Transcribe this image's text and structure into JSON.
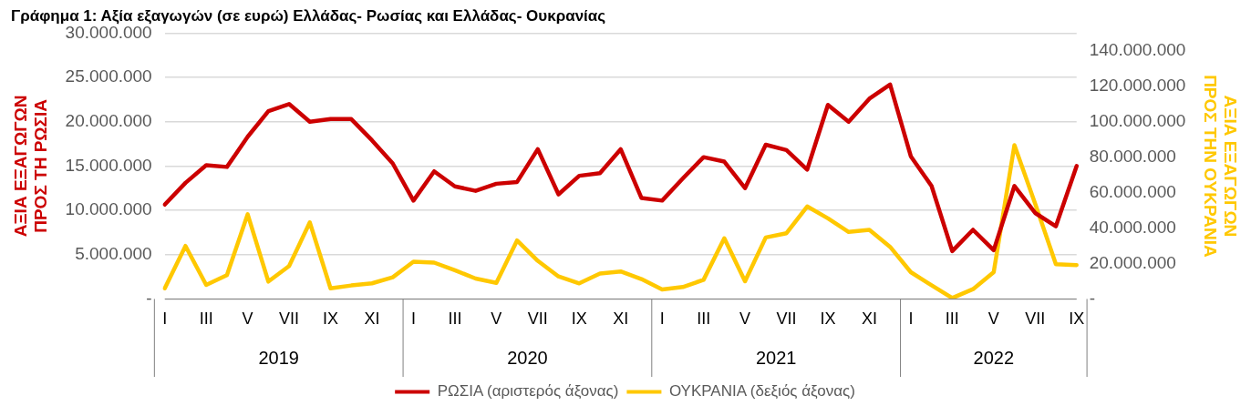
{
  "chart_data": {
    "type": "line",
    "title": "Γράφημα 1: Αξία εξαγωγών (σε ευρώ) Ελλάδας- Ρωσίας και Ελλάδας- Ουκρανίας",
    "ylabel": "ΑΞΙΑ ΕΞΑΓΩΓΩΝ ΠΡΟΣ ΤΗ ΡΩΣΙΑ",
    "y2label": "ΑΞΙΑ ΕΞΑΓΩΓΩΝ ΠΡΟΣ ΤΗΝ ΟΥΚΡΑΝΙΑ",
    "categories": [
      "I",
      null,
      "III",
      null,
      "V",
      null,
      "VII",
      null,
      "IX",
      null,
      "XI",
      null,
      "I",
      null,
      "III",
      null,
      "V",
      null,
      "VII",
      null,
      "IX",
      null,
      "XI",
      null,
      "I",
      null,
      "III",
      null,
      "V",
      null,
      "VII",
      null,
      "IX",
      null,
      "XI",
      null,
      "I",
      null,
      "III",
      null,
      "V",
      null,
      "VII",
      null,
      "IX"
    ],
    "annotations": [
      "2019",
      "2020",
      "2021",
      "2022"
    ],
    "series": [
      {
        "name": "ΡΩΣΙΑ (αριστερός άξονας)",
        "color": "#cc0000",
        "axis": "y",
        "values": [
          10650000,
          13100000,
          15100000,
          14900000,
          18300000,
          21200000,
          22000000,
          20000000,
          20300000,
          20300000,
          17900000,
          15300000,
          11100000,
          14400000,
          12700000,
          12200000,
          13000000,
          13200000,
          16900000,
          11800000,
          13900000,
          14200000,
          16900000,
          11400000,
          11100000,
          13600000,
          16000000,
          15500000,
          12500000,
          17400000,
          16800000,
          14600000,
          21900000,
          20000000,
          22600000,
          24200000,
          16100000,
          12750000,
          5400000,
          7800000,
          5500000,
          12750000,
          9700000,
          8200000,
          15000000
        ]
      },
      {
        "name": "ΟΥΚΡΑΝΙΑ (δεξιός άξονας)",
        "color": "#ffc800",
        "axis": "y2",
        "values": [
          6000000,
          29900000,
          7900000,
          13400000,
          47800000,
          9800000,
          18600000,
          43200000,
          6000000,
          7600000,
          8800000,
          12200000,
          21000000,
          20500000,
          16200000,
          11500000,
          9100000,
          33000000,
          21500000,
          12700000,
          8800000,
          14300000,
          15500000,
          11200000,
          5300000,
          6700000,
          10800000,
          34200000,
          10000000,
          34700000,
          37100000,
          52200000,
          45500000,
          37800000,
          39000000,
          29400000,
          15100000,
          7700000,
          500000,
          5500000,
          15100000,
          86800000,
          53800000,
          19600000,
          19100000
        ]
      }
    ],
    "ylim": [
      0,
      30000000
    ],
    "yticks": [
      {
        "value": 0,
        "label": "-"
      },
      {
        "value": 5000000,
        "label": "5.000.000"
      },
      {
        "value": 10000000,
        "label": "10.000.000"
      },
      {
        "value": 15000000,
        "label": "15.000.000"
      },
      {
        "value": 20000000,
        "label": "20.000.000"
      },
      {
        "value": 25000000,
        "label": "25.000.000"
      },
      {
        "value": 30000000,
        "label": "30.000.000"
      }
    ],
    "y2lim": [
      0,
      150000000
    ],
    "y2ticks": [
      {
        "value": 0,
        "label": "-"
      },
      {
        "value": 20000000,
        "label": "20.000.000"
      },
      {
        "value": 40000000,
        "label": "40.000.000"
      },
      {
        "value": 60000000,
        "label": "60.000.000"
      },
      {
        "value": 80000000,
        "label": "80.000.000"
      },
      {
        "value": 100000000,
        "label": "100.000.000"
      },
      {
        "value": 120000000,
        "label": "120.000.000"
      },
      {
        "value": 140000000,
        "label": "140.000.000"
      }
    ],
    "grid": "y",
    "legend": "bottom",
    "marker": "none",
    "line_style": "solid"
  }
}
